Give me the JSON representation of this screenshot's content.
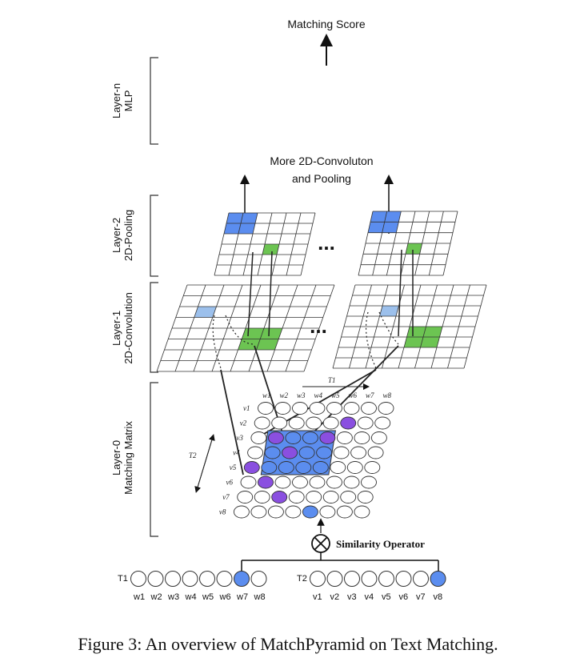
{
  "top": {
    "matching_score": "Matching Score",
    "more_conv_line1": "More 2D-Convoluton",
    "more_conv_line2": "and Pooling",
    "ellipsis": "..."
  },
  "layers": {
    "layer_n_line1": "Layer-n",
    "layer_n_line2": "MLP",
    "layer_2_line1": "Layer-2",
    "layer_2_line2": "2D-Pooling",
    "layer_1_line1": "Layer-1",
    "layer_1_line2": "2D-Convolution",
    "layer_0_line1": "Layer-0",
    "layer_0_line2": "Matching Matrix"
  },
  "matrix": {
    "t1_axis": "T1",
    "t2_axis": "T2",
    "col_labels": [
      "w1",
      "w2",
      "w3",
      "w4",
      "w5",
      "w6",
      "w7",
      "w8"
    ],
    "row_labels": [
      "v1",
      "v2",
      "v3",
      "v4",
      "v5",
      "v6",
      "v7",
      "v8"
    ]
  },
  "similarity_operator": "Similarity Operator",
  "sentences": {
    "t1_label": "T1",
    "t2_label": "T2",
    "t1_words": [
      "w1",
      "w2",
      "w3",
      "w4",
      "w5",
      "w6",
      "w7",
      "w8"
    ],
    "t2_words": [
      "v1",
      "v2",
      "v3",
      "v4",
      "v5",
      "v6",
      "v7",
      "v8"
    ]
  },
  "caption": "Figure 3: An overview of MatchPyramid on Text Matching.",
  "colors": {
    "blue": "#5b8def",
    "light_blue": "#9cc0ec",
    "green": "#6cc452",
    "purple": "#8a4fe0",
    "line": "#222222"
  }
}
